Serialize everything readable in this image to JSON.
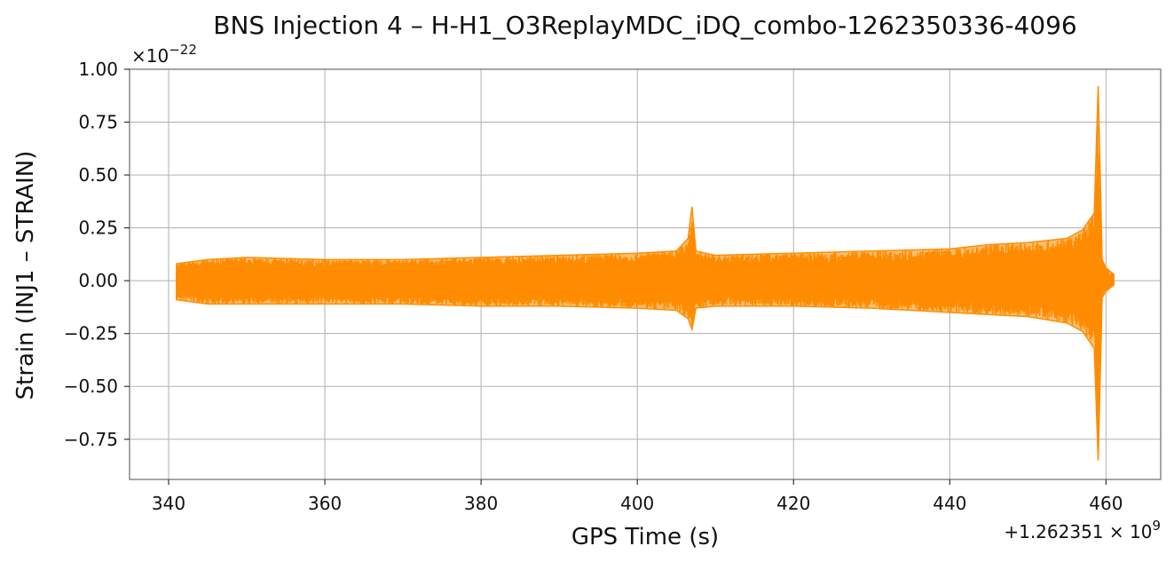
{
  "chart_data": {
    "type": "line",
    "title": "BNS Injection 4 – H-H1_O3ReplayMDC_iDQ_combo-1262350336-4096",
    "xlabel": "GPS Time (s)",
    "ylabel": "Strain (INJ1 – STRAIN)",
    "xlim": [
      335,
      467
    ],
    "ylim": [
      -0.94,
      1.0
    ],
    "x_ticks": [
      340,
      360,
      380,
      400,
      420,
      440,
      460
    ],
    "x_tick_labels": [
      "340",
      "360",
      "380",
      "400",
      "420",
      "440",
      "460"
    ],
    "y_ticks": [
      -0.75,
      -0.5,
      -0.25,
      0.0,
      0.25,
      0.5,
      0.75,
      1.0
    ],
    "y_tick_labels": [
      "−0.75",
      "−0.50",
      "−0.25",
      "0.00",
      "0.25",
      "0.50",
      "0.75",
      "1.00"
    ],
    "x_offset_label": "+1.262351 × 10",
    "x_offset_exponent": "9",
    "y_scale_label": "×10",
    "y_scale_exponent": "−22",
    "grid": true,
    "color": "#ff8c00",
    "series": [
      {
        "x": [
          341,
          345,
          350,
          360,
          370,
          380,
          390,
          400,
          405,
          406.5,
          407,
          407.5,
          410,
          420,
          430,
          440,
          445,
          450,
          455,
          457,
          458.5,
          459,
          459.5,
          460,
          461
        ],
        "y_upper": [
          0.08,
          0.1,
          0.11,
          0.1,
          0.1,
          0.11,
          0.12,
          0.13,
          0.14,
          0.2,
          0.35,
          0.14,
          0.12,
          0.13,
          0.14,
          0.15,
          0.17,
          0.18,
          0.2,
          0.24,
          0.32,
          0.92,
          0.1,
          0.06,
          0.03
        ],
        "y_lower": [
          -0.09,
          -0.11,
          -0.11,
          -0.11,
          -0.11,
          -0.12,
          -0.12,
          -0.13,
          -0.14,
          -0.18,
          -0.23,
          -0.13,
          -0.12,
          -0.12,
          -0.13,
          -0.15,
          -0.16,
          -0.17,
          -0.2,
          -0.24,
          -0.32,
          -0.85,
          -0.08,
          -0.05,
          -0.02
        ]
      }
    ]
  }
}
